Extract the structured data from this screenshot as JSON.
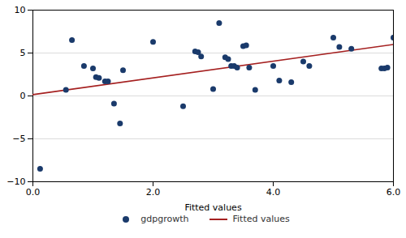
{
  "chart_data": {
    "type": "scatter",
    "xlabel": "Fitted values",
    "xlim": [
      0,
      6
    ],
    "xticks": [
      0,
      2,
      4,
      6
    ],
    "ylim": [
      -10,
      10
    ],
    "yticks": [
      -10,
      -5,
      0,
      5,
      10
    ],
    "grid": true,
    "legend": "bottom",
    "series": [
      {
        "name": "gdpgrowth",
        "type": "scatter",
        "marker": "circle",
        "color": "#1a3a6b",
        "x": [
          0.12,
          0.55,
          0.65,
          0.85,
          1.0,
          1.05,
          1.1,
          1.2,
          1.25,
          1.35,
          1.45,
          1.5,
          2.0,
          2.5,
          2.7,
          2.75,
          2.8,
          3.0,
          3.1,
          3.2,
          3.25,
          3.3,
          3.35,
          3.4,
          3.5,
          3.55,
          3.6,
          3.7,
          4.0,
          4.1,
          4.3,
          4.5,
          4.6,
          5.0,
          5.1,
          5.3,
          5.8,
          5.85,
          5.9,
          6.0
        ],
        "values": [
          -8.5,
          0.7,
          6.5,
          3.5,
          3.2,
          2.2,
          2.1,
          1.7,
          1.7,
          -0.9,
          -3.2,
          3.0,
          6.3,
          -1.2,
          5.2,
          5.1,
          4.6,
          0.8,
          8.5,
          4.5,
          4.3,
          3.5,
          3.5,
          3.3,
          5.8,
          5.9,
          3.3,
          0.7,
          3.5,
          1.8,
          1.6,
          4.0,
          3.5,
          6.8,
          5.7,
          5.5,
          3.2,
          3.2,
          3.3,
          6.8
        ]
      },
      {
        "name": "Fitted values",
        "type": "line",
        "line_style": "solid",
        "color": "#a52020",
        "x": [
          0,
          6
        ],
        "values": [
          0.15,
          6.0
        ]
      }
    ]
  }
}
